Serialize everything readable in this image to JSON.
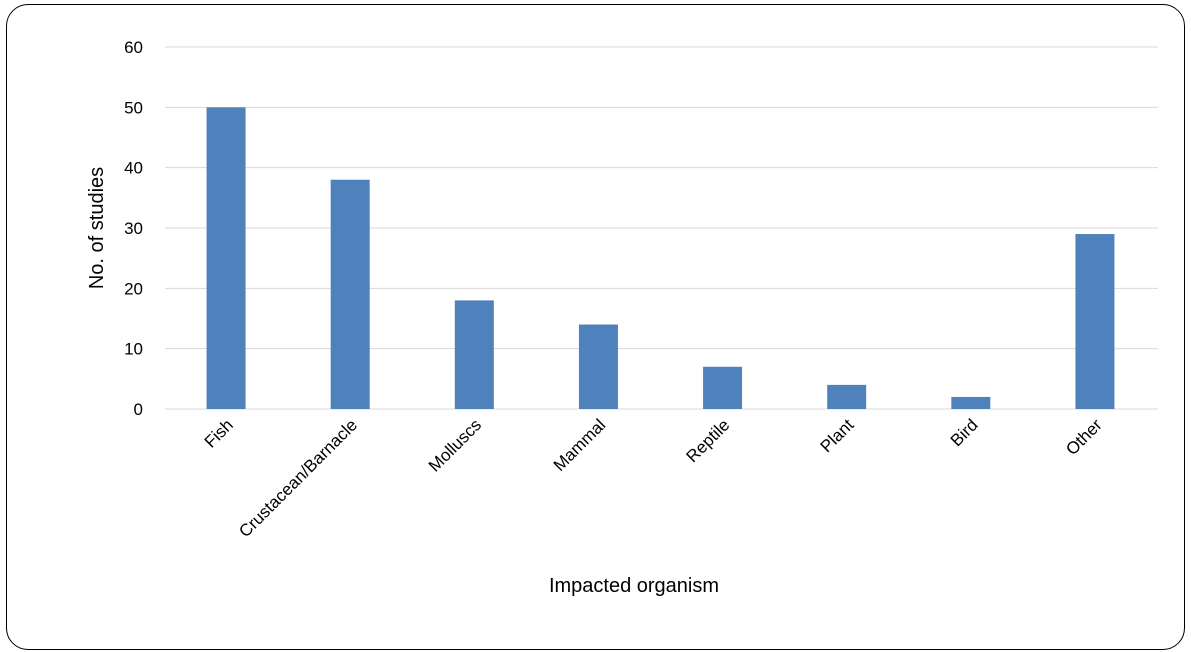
{
  "chart_data": {
    "type": "bar",
    "title": "",
    "xlabel": "Impacted organism",
    "ylabel": "No. of studies",
    "categories": [
      "Fish",
      "Crustacean/Barnacle",
      "Molluscs",
      "Mammal",
      "Reptile",
      "Plant",
      "Bird",
      "Other"
    ],
    "values": [
      50,
      38,
      18,
      14,
      7,
      4,
      2,
      29
    ],
    "ylim": [
      0,
      60
    ],
    "yticks": [
      0,
      10,
      20,
      30,
      40,
      50,
      60
    ],
    "grid": true,
    "legend": "none",
    "bar_color": "#4F81BD",
    "grid_color": "#D9D9D9"
  }
}
